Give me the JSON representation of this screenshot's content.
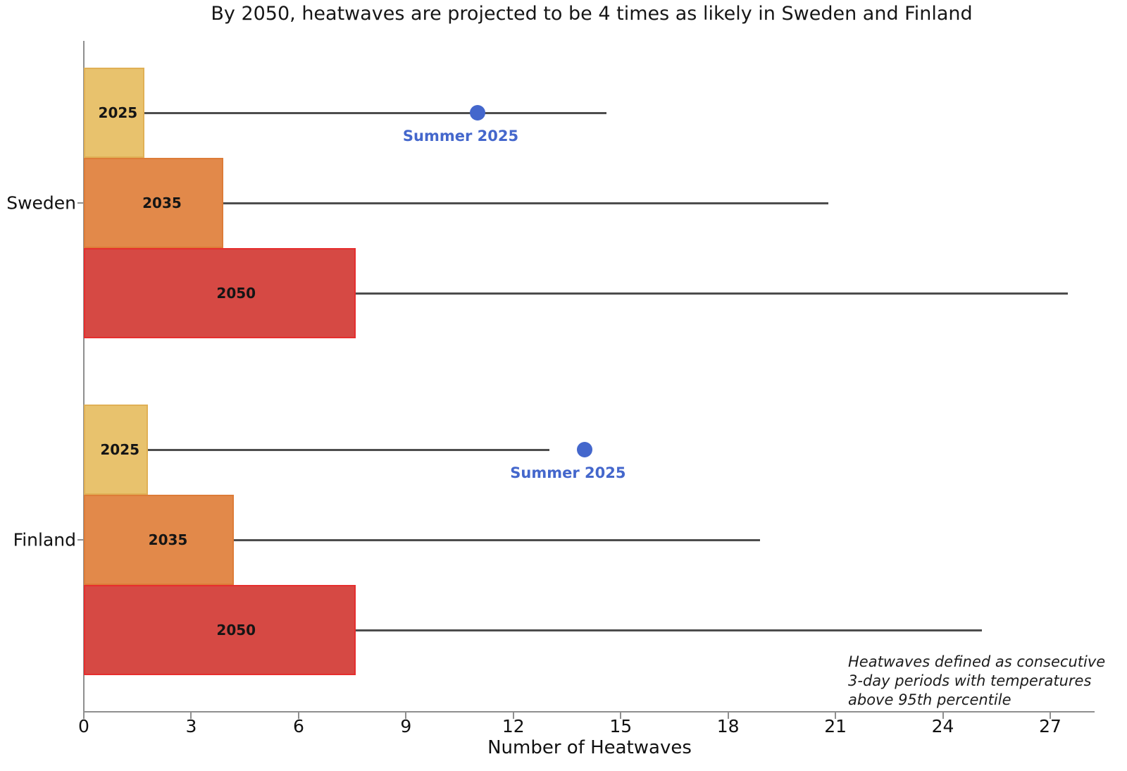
{
  "title": "By 2050, heatwaves are projected to be 4 times as likely in Sweden and Finland",
  "xlabel": "Number of Heatwaves",
  "annotation": {
    "line1": "Heatwaves defined as consecutive",
    "line2": "3-day periods with temperatures",
    "line3": "above 95th percentile"
  },
  "colors": {
    "bar_2025_fill": "#e8c26d",
    "bar_2025_edge": "#e0b055",
    "bar_2035_fill": "#e2894a",
    "bar_2035_edge": "#dd7c38",
    "bar_2050_fill": "#d64944",
    "bar_2050_edge": "#e62e2e",
    "marker_blue": "#4467cc",
    "whisker_gray": "#4d4d4d",
    "axis_gray": "#8f8f8f"
  },
  "chart_data": {
    "type": "bar",
    "orientation": "horizontal",
    "title": "By 2050, heatwaves are projected to be 4 times as likely in Sweden and Finland",
    "xlabel": "Number of Heatwaves",
    "xlim": [
      0,
      28.2
    ],
    "x_ticks": [
      0,
      3,
      6,
      9,
      12,
      15,
      18,
      21,
      24,
      27
    ],
    "grid": false,
    "marker_label": "Summer 2025",
    "groups": [
      {
        "label": "Sweden",
        "summer_2025_marker": 11.0,
        "bars": [
          {
            "year": "2025",
            "value": 1.7,
            "whisker_max": 14.6,
            "fill": "#e8c26d",
            "edge": "#e0b055"
          },
          {
            "year": "2035",
            "value": 3.9,
            "whisker_max": 20.8,
            "fill": "#e2894a",
            "edge": "#dd7c38"
          },
          {
            "year": "2050",
            "value": 7.6,
            "whisker_max": 27.5,
            "fill": "#d64944",
            "edge": "#e62e2e"
          }
        ]
      },
      {
        "label": "Finland",
        "summer_2025_marker": 14.0,
        "bars": [
          {
            "year": "2025",
            "value": 1.8,
            "whisker_max": 13.0,
            "fill": "#e8c26d",
            "edge": "#e0b055"
          },
          {
            "year": "2035",
            "value": 4.2,
            "whisker_max": 18.9,
            "fill": "#e2894a",
            "edge": "#dd7c38"
          },
          {
            "year": "2050",
            "value": 7.6,
            "whisker_max": 25.1,
            "fill": "#d64944",
            "edge": "#e62e2e"
          }
        ]
      }
    ]
  }
}
